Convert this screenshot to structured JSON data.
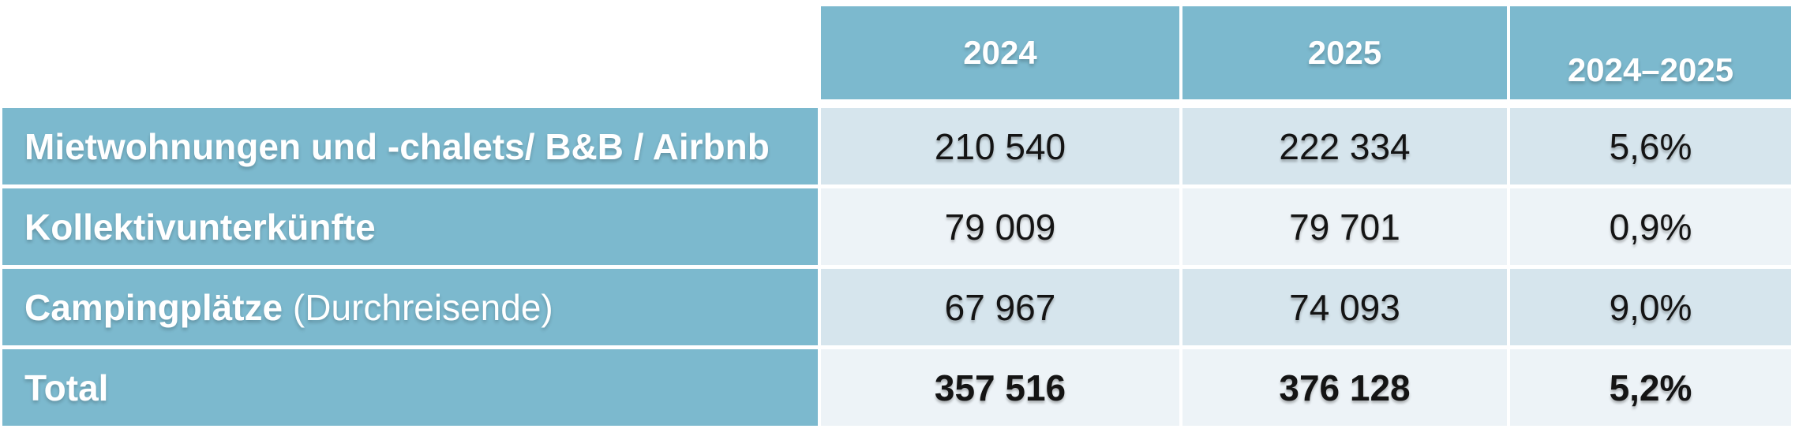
{
  "colors": {
    "header_bg": "#7cb9ce",
    "label_bg": "#7cb9ce",
    "row_odd_bg": "#d6e5ed",
    "row_even_bg": "#edf3f7",
    "header_text": "#ffffff",
    "value_text": "#141414"
  },
  "table": {
    "columns": [
      "2024",
      "2025",
      "2024–2025"
    ],
    "rows": [
      {
        "label_bold": "Mietwohnungen und -chalets/ B&B / Airbnb",
        "label_regular": "",
        "values": [
          "210 540",
          "222 334",
          "5,6%"
        ]
      },
      {
        "label_bold": "Kollektivunterkünfte",
        "label_regular": "",
        "values": [
          "79 009",
          "79 701",
          "0,9%"
        ]
      },
      {
        "label_bold": "Campingplätze",
        "label_regular": " (Durchreisende)",
        "values": [
          "67 967",
          "74 093",
          "9,0%"
        ]
      },
      {
        "label_bold": "Total",
        "label_regular": "",
        "values": [
          "357 516",
          "376 128",
          "5,2%"
        ]
      }
    ]
  },
  "chart_data": {
    "type": "table",
    "columns": [
      "",
      "2024",
      "2025",
      "2024–2025"
    ],
    "rows": [
      [
        "Mietwohnungen und -chalets/ B&B / Airbnb",
        "210 540",
        "222 334",
        "5,6%"
      ],
      [
        "Kollektivunterkünfte",
        "79 009",
        "79 701",
        "0,9%"
      ],
      [
        "Campingplätze (Durchreisende)",
        "67 967",
        "74 093",
        "9,0%"
      ],
      [
        "Total",
        "357 516",
        "376 128",
        "5,2%"
      ]
    ]
  }
}
